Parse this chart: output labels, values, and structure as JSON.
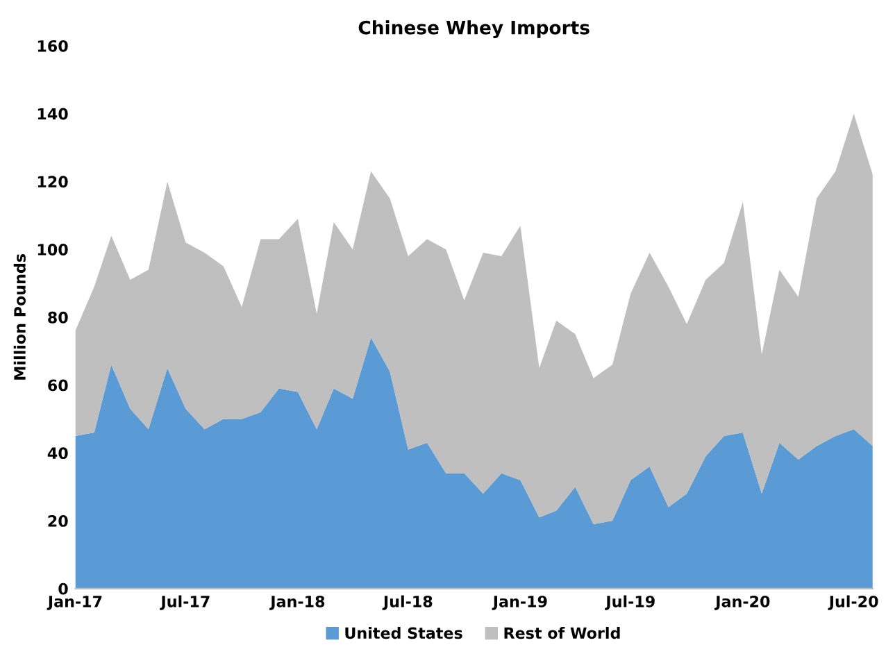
{
  "chart_data": {
    "type": "area",
    "stacked": true,
    "title": "Chinese Whey Imports",
    "ylabel": "Million Pounds",
    "x": [
      "2017-01",
      "2017-02",
      "2017-03",
      "2017-04",
      "2017-05",
      "2017-06",
      "2017-07",
      "2017-08",
      "2017-09",
      "2017-10",
      "2017-11",
      "2017-12",
      "2018-01",
      "2018-02",
      "2018-03",
      "2018-04",
      "2018-05",
      "2018-06",
      "2018-07",
      "2018-08",
      "2018-09",
      "2018-10",
      "2018-11",
      "2018-12",
      "2019-01",
      "2019-02",
      "2019-03",
      "2019-04",
      "2019-05",
      "2019-06",
      "2019-07",
      "2019-08",
      "2019-09",
      "2019-10",
      "2019-11",
      "2019-12",
      "2020-01",
      "2020-02",
      "2020-03",
      "2020-04",
      "2020-05",
      "2020-06",
      "2020-07",
      "2020-08"
    ],
    "series": [
      {
        "name": "United States",
        "color": "#5b9bd5",
        "values": [
          45,
          46,
          66,
          53,
          47,
          65,
          53,
          47,
          50,
          50,
          52,
          59,
          58,
          47,
          59,
          56,
          74,
          64,
          41,
          43,
          34,
          34,
          28,
          34,
          32,
          21,
          23,
          30,
          19,
          20,
          32,
          36,
          24,
          28,
          39,
          45,
          46,
          28,
          43,
          38,
          42,
          45,
          47,
          42
        ]
      },
      {
        "name": "Rest of World",
        "color": "#bfbfbf",
        "values": [
          31,
          43,
          38,
          38,
          47,
          55,
          49,
          52,
          45,
          33,
          51,
          44,
          51,
          34,
          49,
          44,
          49,
          51,
          57,
          60,
          66,
          51,
          71,
          64,
          75,
          44,
          56,
          45,
          43,
          46,
          55,
          63,
          65,
          50,
          52,
          51,
          68,
          41,
          51,
          48,
          73,
          78,
          93,
          80
        ]
      }
    ],
    "xlim": [
      "2017-01",
      "2020-08"
    ],
    "xticks": [
      {
        "value": "2017-01",
        "label": "Jan-17"
      },
      {
        "value": "2017-07",
        "label": "Jul-17"
      },
      {
        "value": "2018-01",
        "label": "Jan-18"
      },
      {
        "value": "2018-07",
        "label": "Jul-18"
      },
      {
        "value": "2019-01",
        "label": "Jan-19"
      },
      {
        "value": "2019-07",
        "label": "Jul-19"
      },
      {
        "value": "2020-01",
        "label": "Jan-20"
      },
      {
        "value": "2020-07",
        "label": "Jul-20"
      }
    ],
    "ylim": [
      0,
      160
    ],
    "yticks": [
      0,
      20,
      40,
      60,
      80,
      100,
      120,
      140,
      160
    ],
    "grid": false,
    "legend": "bottom"
  }
}
